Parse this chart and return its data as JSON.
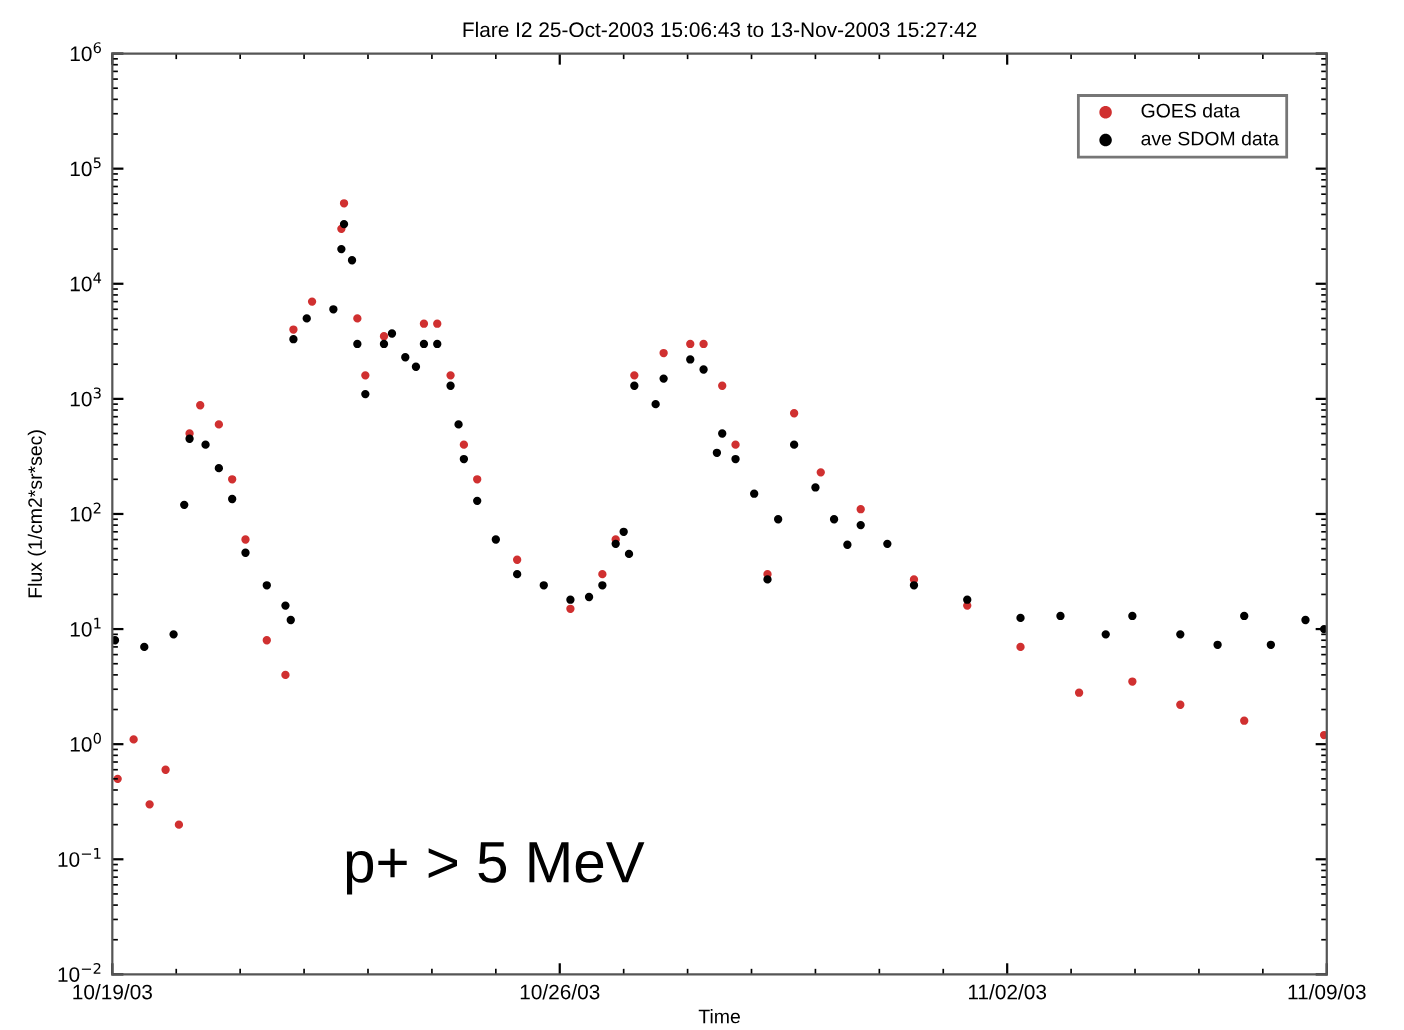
{
  "chart_data": {
    "type": "scatter",
    "title": "Flare I2 25-Oct-2003 15:06:43 to 13-Nov-2003 15:27:42",
    "xlabel": "Time",
    "ylabel": "Flux (1/cm2*sr*sec)",
    "log": "y",
    "grid": false,
    "legend": "top right",
    "marker": "circle",
    "xlim": [
      "2003-10-19",
      "2003-11-07"
    ],
    "xticks": [
      {
        "value": "2003-10-19",
        "label": "10/19/03"
      },
      {
        "value": "2003-10-26",
        "label": "10/26/03"
      },
      {
        "value": "2003-11-02",
        "label": "11/02/03"
      },
      {
        "value": "2003-11-07",
        "label": "11/09/03"
      }
    ],
    "ylim": [
      0.01,
      1000000
    ],
    "yticks": [
      {
        "value": 0.01,
        "label": "10$^{−2}$"
      },
      {
        "value": 0.1,
        "label": "10$^{−1}$"
      },
      {
        "value": 1,
        "label": "10$^{0}$"
      },
      {
        "value": 10,
        "label": "10$^{1}$"
      },
      {
        "value": 100,
        "label": "10$^{2}$"
      },
      {
        "value": 1000,
        "label": "10$^{3}$"
      },
      {
        "value": 10000,
        "label": "10$^{4}$"
      },
      {
        "value": 100000,
        "label": "10$^{5}$"
      },
      {
        "value": 1000000,
        "label": "10$^{6}$"
      }
    ],
    "annotations": [
      "p+ > 5 MeV"
    ],
    "series": [
      {
        "name": "GOES data",
        "color": "#d03030",
        "x": [
          "2003-10-19T02:00",
          "2003-10-19T08:00",
          "2003-10-19T14:00",
          "2003-10-19T20:00",
          "2003-10-20T01:00",
          "2003-10-20T05:00",
          "2003-10-20T09:00",
          "2003-10-20T16:00",
          "2003-10-20T21:00",
          "2003-10-21T02:00",
          "2003-10-21T10:00",
          "2003-10-21T17:00",
          "2003-10-21T20:00",
          "2003-10-22T03:00",
          "2003-10-22T14:00",
          "2003-10-22T15:00",
          "2003-10-22T20:00",
          "2003-10-22T23:00",
          "2003-10-23T06:00",
          "2003-10-23T21:00",
          "2003-10-24T02:00",
          "2003-10-24T07:00",
          "2003-10-24T12:00",
          "2003-10-24T17:00",
          "2003-10-25T08:00",
          "2003-10-26T04:00",
          "2003-10-26T16:00",
          "2003-10-26T21:00",
          "2003-10-27T04:00",
          "2003-10-27T15:00",
          "2003-10-28T01:00",
          "2003-10-28T06:00",
          "2003-10-28T13:00",
          "2003-10-28T18:00",
          "2003-10-29T06:00",
          "2003-10-29T16:00",
          "2003-10-30T02:00",
          "2003-10-30T17:00",
          "2003-10-31T13:00",
          "2003-11-01T09:00",
          "2003-11-02T05:00",
          "2003-11-03T03:00",
          "2003-11-03T23:00",
          "2003-11-04T17:00",
          "2003-11-05T17:00",
          "2003-11-06T23:00"
        ],
        "values": [
          0.5,
          1.1,
          0.3,
          0.6,
          0.2,
          500,
          880,
          600,
          200,
          60,
          8,
          4,
          4000,
          7000,
          30000,
          50000,
          5000,
          1600,
          3500,
          4500,
          4500,
          1600,
          400,
          200,
          40,
          15,
          30,
          60,
          1600,
          2500,
          3000,
          3000,
          1300,
          400,
          30,
          750,
          230,
          110,
          27,
          16,
          7,
          2.8,
          3.5,
          2.2,
          1.6,
          1.2
        ]
      },
      {
        "name": "ave SDOM data",
        "color": "#000000",
        "x": [
          "2003-10-19T01:00",
          "2003-10-19T12:00",
          "2003-10-19T23:00",
          "2003-10-20T03:00",
          "2003-10-20T05:00",
          "2003-10-20T11:00",
          "2003-10-20T16:00",
          "2003-10-20T21:00",
          "2003-10-21T02:00",
          "2003-10-21T10:00",
          "2003-10-21T17:00",
          "2003-10-21T19:00",
          "2003-10-21T20:00",
          "2003-10-22T01:00",
          "2003-10-22T11:00",
          "2003-10-22T14:00",
          "2003-10-22T15:00",
          "2003-10-22T18:00",
          "2003-10-22T20:00",
          "2003-10-22T23:00",
          "2003-10-23T06:00",
          "2003-10-23T09:00",
          "2003-10-23T14:00",
          "2003-10-23T18:00",
          "2003-10-23T21:00",
          "2003-10-24T02:00",
          "2003-10-24T07:00",
          "2003-10-24T10:00",
          "2003-10-24T12:00",
          "2003-10-24T17:00",
          "2003-10-25T00:00",
          "2003-10-25T08:00",
          "2003-10-25T18:00",
          "2003-10-26T04:00",
          "2003-10-26T11:00",
          "2003-10-26T16:00",
          "2003-10-26T21:00",
          "2003-10-27T00:00",
          "2003-10-27T02:00",
          "2003-10-27T04:00",
          "2003-10-27T12:00",
          "2003-10-27T15:00",
          "2003-10-28T01:00",
          "2003-10-28T06:00",
          "2003-10-28T11:00",
          "2003-10-28T13:00",
          "2003-10-28T18:00",
          "2003-10-29T01:00",
          "2003-10-29T06:00",
          "2003-10-29T10:00",
          "2003-10-29T16:00",
          "2003-10-30T00:00",
          "2003-10-30T07:00",
          "2003-10-30T12:00",
          "2003-10-30T17:00",
          "2003-10-31T03:00",
          "2003-10-31T13:00",
          "2003-11-01T09:00",
          "2003-11-02T05:00",
          "2003-11-02T20:00",
          "2003-11-03T13:00",
          "2003-11-03T23:00",
          "2003-11-04T17:00",
          "2003-11-05T07:00",
          "2003-11-05T17:00",
          "2003-11-06T03:00",
          "2003-11-06T16:00",
          "2003-11-06T23:00"
        ],
        "values": [
          8,
          7,
          9,
          120,
          450,
          400,
          250,
          135,
          46,
          24,
          16,
          12,
          3300,
          5000,
          6000,
          20000,
          33000,
          16000,
          3000,
          1100,
          3000,
          3700,
          2300,
          1900,
          3000,
          3000,
          1300,
          600,
          300,
          130,
          60,
          30,
          24,
          18,
          19,
          24,
          55,
          70,
          45,
          1300,
          900,
          1500,
          2200,
          1800,
          340,
          500,
          300,
          150,
          27,
          90,
          400,
          170,
          90,
          54,
          80,
          55,
          24,
          18,
          12.5,
          13,
          9,
          13,
          9,
          7.3,
          13,
          7.3,
          12,
          10
        ]
      }
    ]
  }
}
